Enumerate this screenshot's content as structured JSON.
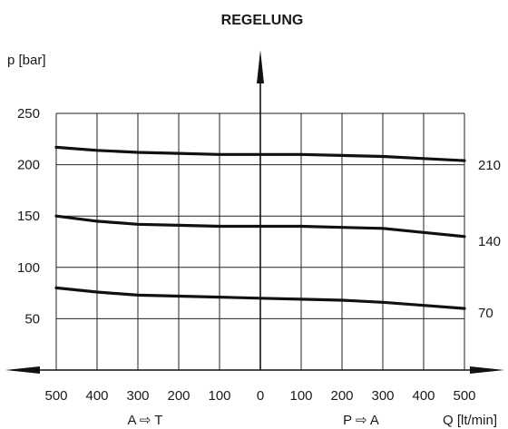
{
  "chart_data": {
    "type": "line",
    "title": "REGELUNG",
    "ylabel": "p [bar]",
    "xlabel": "Q [lt/min]",
    "x_direction_labels": {
      "left": "A ⇨ T",
      "right": "P ⇨ A"
    },
    "x": [
      -500,
      -400,
      -300,
      -200,
      -100,
      0,
      100,
      200,
      300,
      400,
      500
    ],
    "xtick_labels": [
      "500",
      "400",
      "300",
      "200",
      "100",
      "0",
      "100",
      "200",
      "300",
      "400",
      "500"
    ],
    "yticks": [
      50,
      100,
      150,
      200,
      250
    ],
    "xlim": [
      -500,
      500
    ],
    "ylim": [
      0,
      250
    ],
    "grid": true,
    "series": [
      {
        "name": "210",
        "values": [
          217,
          214,
          212,
          211,
          210,
          210,
          210,
          209,
          208,
          206,
          204
        ]
      },
      {
        "name": "140",
        "values": [
          150,
          145,
          142,
          141,
          140,
          140,
          140,
          139,
          138,
          134,
          130
        ]
      },
      {
        "name": "70",
        "values": [
          80,
          76,
          73,
          72,
          71,
          70,
          69,
          68,
          66,
          63,
          60
        ]
      }
    ]
  }
}
